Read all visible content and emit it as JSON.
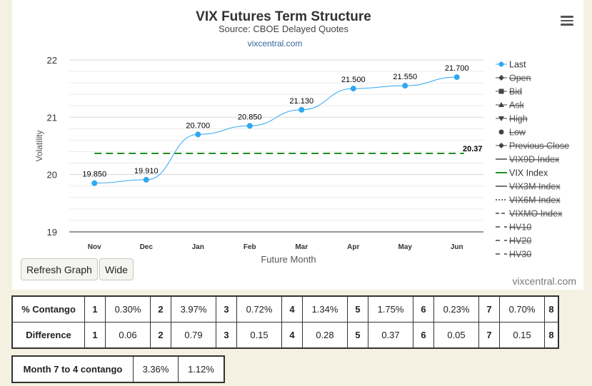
{
  "chart_data": {
    "type": "line",
    "title": "VIX Futures Term Structure",
    "subtitle": "Source: CBOE Delayed Quotes",
    "source_link": "vixcentral.com",
    "xlabel": "Future Month",
    "ylabel": "Volatility",
    "ylim": [
      19,
      22
    ],
    "yticks": [
      19,
      20,
      21,
      22
    ],
    "categories": [
      "Nov",
      "Dec",
      "Jan",
      "Feb",
      "Mar",
      "Apr",
      "May",
      "Jun"
    ],
    "grid": true,
    "legend_position": "right",
    "series": [
      {
        "name": "Last",
        "color": "#2fa8f0",
        "values": [
          19.85,
          19.91,
          20.7,
          20.85,
          21.13,
          21.5,
          21.55,
          21.7
        ],
        "labels": [
          "19.850",
          "19.910",
          "20.700",
          "20.850",
          "21.130",
          "21.500",
          "21.550",
          "21.700"
        ]
      },
      {
        "name": "VIX Index",
        "color": "#1f8f1f",
        "style": "dashed",
        "value": 20.37,
        "label": "20.37"
      }
    ],
    "legend": [
      {
        "name": "Last",
        "symbol": "circle",
        "active": true
      },
      {
        "name": "Open",
        "symbol": "diamond",
        "active": false
      },
      {
        "name": "Bid",
        "symbol": "square",
        "active": false
      },
      {
        "name": "Ask",
        "symbol": "triangle",
        "active": false
      },
      {
        "name": "High",
        "symbol": "triangle-down",
        "active": false
      },
      {
        "name": "Low",
        "symbol": "circle",
        "active": false
      },
      {
        "name": "Previous Close",
        "symbol": "diamond",
        "active": false
      },
      {
        "name": "VIX9D Index",
        "symbol": "solid",
        "active": false
      },
      {
        "name": "VIX Index",
        "symbol": "dash-green",
        "active": true
      },
      {
        "name": "VIX3M Index",
        "symbol": "solid",
        "active": false
      },
      {
        "name": "VIX6M Index",
        "symbol": "dot",
        "active": false
      },
      {
        "name": "VIXMO Index",
        "symbol": "dash",
        "active": false
      },
      {
        "name": "HV10",
        "symbol": "longdash",
        "active": false
      },
      {
        "name": "HV20",
        "symbol": "longdash",
        "active": false
      },
      {
        "name": "HV30",
        "symbol": "longdash",
        "active": false
      }
    ]
  },
  "buttons": {
    "refresh": "Refresh Graph",
    "wide": "Wide"
  },
  "credit": "vixcentral.com",
  "contango_table": {
    "rows": [
      {
        "label": "% Contango",
        "cells": [
          [
            "1",
            "0.30%"
          ],
          [
            "2",
            "3.97%"
          ],
          [
            "3",
            "0.72%"
          ],
          [
            "4",
            "1.34%"
          ],
          [
            "5",
            "1.75%"
          ],
          [
            "6",
            "0.23%"
          ],
          [
            "7",
            "0.70%"
          ],
          [
            "8",
            ""
          ]
        ]
      },
      {
        "label": "Difference",
        "cells": [
          [
            "1",
            "0.06"
          ],
          [
            "2",
            "0.79"
          ],
          [
            "3",
            "0.15"
          ],
          [
            "4",
            "0.28"
          ],
          [
            "5",
            "0.37"
          ],
          [
            "6",
            "0.05"
          ],
          [
            "7",
            "0.15"
          ],
          [
            "8",
            ""
          ]
        ]
      }
    ]
  },
  "month_table": {
    "label": "Month 7 to 4 contango",
    "values": [
      "3.36%",
      "1.12%"
    ]
  }
}
